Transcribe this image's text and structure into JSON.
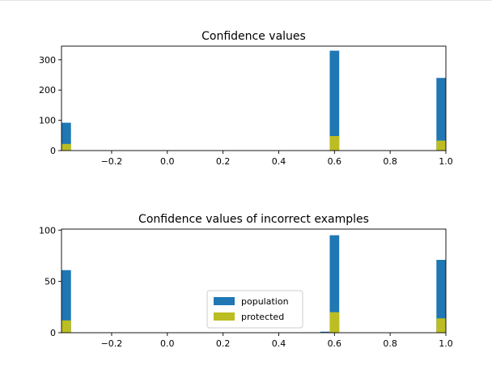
{
  "chart_data": [
    {
      "type": "bar",
      "title": "Confidence values",
      "xlim": [
        -0.38,
        1.0
      ],
      "ylim": [
        0,
        345
      ],
      "xticks": [
        "−0.2",
        "0.0",
        "0.2",
        "0.4",
        "0.6",
        "0.8",
        "1.0"
      ],
      "xtick_values": [
        -0.2,
        0.0,
        0.2,
        0.4,
        0.6,
        0.8,
        1.0
      ],
      "yticks": [
        "0",
        "100",
        "200",
        "300"
      ],
      "ytick_values": [
        0,
        100,
        200,
        300
      ],
      "bin_width": 0.034,
      "series": [
        {
          "name": "population",
          "color": "#1f77b4",
          "bars": [
            {
              "x": -0.38,
              "value": 92
            },
            {
              "x": 0.583,
              "value": 330
            },
            {
              "x": 0.966,
              "value": 240
            }
          ]
        },
        {
          "name": "protected",
          "color": "#bcbd22",
          "bars": [
            {
              "x": -0.38,
              "value": 22
            },
            {
              "x": 0.583,
              "value": 48
            },
            {
              "x": 0.966,
              "value": 33
            }
          ]
        }
      ]
    },
    {
      "type": "bar",
      "title": "Confidence values of incorrect examples",
      "xlim": [
        -0.38,
        1.0
      ],
      "ylim": [
        0,
        101
      ],
      "xticks": [
        "−0.2",
        "0.0",
        "0.2",
        "0.4",
        "0.6",
        "0.8",
        "1.0"
      ],
      "xtick_values": [
        -0.2,
        0.0,
        0.2,
        0.4,
        0.6,
        0.8,
        1.0
      ],
      "yticks": [
        "0",
        "50",
        "100"
      ],
      "ytick_values": [
        0,
        50,
        100
      ],
      "bin_width": 0.034,
      "legend": "lower-center",
      "series": [
        {
          "name": "population",
          "color": "#1f77b4",
          "bars": [
            {
              "x": -0.38,
              "value": 61
            },
            {
              "x": 0.549,
              "value": 1
            },
            {
              "x": 0.583,
              "value": 95
            },
            {
              "x": 0.966,
              "value": 71
            }
          ]
        },
        {
          "name": "protected",
          "color": "#bcbd22",
          "bars": [
            {
              "x": -0.38,
              "value": 12
            },
            {
              "x": 0.583,
              "value": 20
            },
            {
              "x": 0.966,
              "value": 14
            }
          ]
        }
      ]
    }
  ]
}
